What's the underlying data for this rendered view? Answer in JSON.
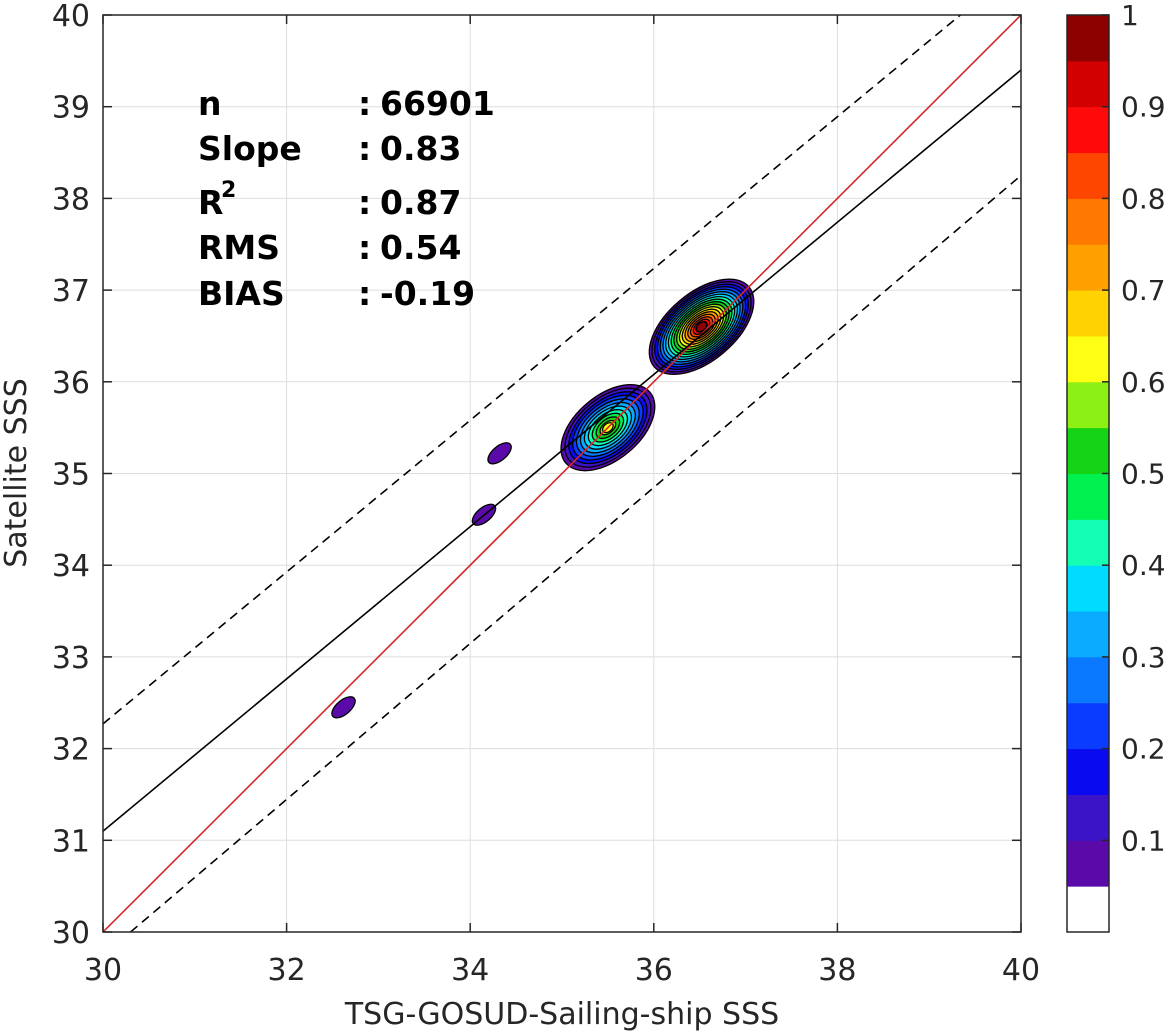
{
  "chart_data": {
    "type": "contour",
    "xlabel": "TSG-GOSUD-Sailing-ship SSS",
    "ylabel": "Satellite SSS",
    "xlim": [
      30,
      40
    ],
    "ylim": [
      30,
      40
    ],
    "xticks": [
      "30",
      "32",
      "34",
      "36",
      "38",
      "40"
    ],
    "yticks": [
      "30",
      "31",
      "32",
      "33",
      "34",
      "35",
      "36",
      "37",
      "38",
      "39",
      "40"
    ],
    "grid": true,
    "stats": [
      {
        "label": "n",
        "sep": ":",
        "value": "66901"
      },
      {
        "label": "Slope",
        "sep": ":",
        "value": "0.83"
      },
      {
        "label": "R",
        "sup": "2",
        "sep": ":",
        "value": "0.87"
      },
      {
        "label": "RMS",
        "sep": ":",
        "value": "0.54"
      },
      {
        "label": "BIAS",
        "sep": ":",
        "value": "-0.19"
      }
    ],
    "lines": [
      {
        "name": "one-to-one",
        "color": "#d62728",
        "dash": "solid",
        "points": [
          [
            30,
            30
          ],
          [
            40,
            40
          ]
        ]
      },
      {
        "name": "regression-fit",
        "color": "#000000",
        "dash": "solid",
        "points": [
          [
            30,
            31.1
          ],
          [
            40,
            39.4
          ]
        ]
      },
      {
        "name": "upper-bound",
        "color": "#000000",
        "dash": "dashed",
        "points": [
          [
            30,
            32.27
          ],
          [
            39.34,
            40
          ]
        ]
      },
      {
        "name": "lower-bound",
        "color": "#000000",
        "dash": "dashed",
        "points": [
          [
            30.3,
            30
          ],
          [
            40,
            38.25
          ]
        ]
      }
    ],
    "density_peaks": [
      {
        "x": 36.52,
        "y": 36.6,
        "value": 1.0
      },
      {
        "x": 35.5,
        "y": 35.5,
        "value": 0.66
      },
      {
        "x": 34.15,
        "y": 34.55,
        "value": 0.1
      },
      {
        "x": 34.32,
        "y": 35.22,
        "value": 0.1
      },
      {
        "x": 32.62,
        "y": 32.45,
        "value": 0.1
      }
    ],
    "colorbar": {
      "ticks": [
        "0.1",
        "0.2",
        "0.3",
        "0.4",
        "0.5",
        "0.6",
        "0.7",
        "0.8",
        "0.9",
        "1"
      ],
      "tick_values": [
        0.1,
        0.2,
        0.3,
        0.4,
        0.5,
        0.6,
        0.7,
        0.8,
        0.9,
        1.0
      ],
      "range": [
        0,
        1
      ],
      "colors": [
        "#ffffff",
        "#5a0aa8",
        "#3c14c8",
        "#0a0af0",
        "#0a3cff",
        "#0a78ff",
        "#0aaaff",
        "#00dcff",
        "#14ffb4",
        "#00f050",
        "#14d214",
        "#8cf014",
        "#ffff14",
        "#ffd200",
        "#ffa000",
        "#ff7800",
        "#ff4600",
        "#ff0a0a",
        "#d20000",
        "#8c0000"
      ]
    }
  }
}
